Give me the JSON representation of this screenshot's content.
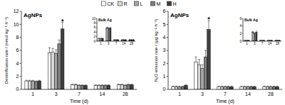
{
  "chart_data": [
    {
      "type": "bar",
      "title": "AgNPs",
      "x_label": "Time (d)",
      "y_label": "Denitrification rate / (nmol·kg⁻¹·h⁻¹)",
      "categories": [
        "1",
        "3",
        "7",
        "14",
        "28"
      ],
      "series": [
        {
          "name": "CK",
          "color": "#ffffff",
          "values": [
            1.3,
            5.6,
            0.7,
            0.6,
            0.7
          ],
          "errors": [
            0.1,
            0.8,
            0.1,
            0.1,
            0.1
          ]
        },
        {
          "name": "R",
          "color": "#d9d9d9",
          "values": [
            1.3,
            5.7,
            0.7,
            0.6,
            0.7
          ],
          "errors": [
            0.1,
            0.6,
            0.1,
            0.1,
            0.1
          ]
        },
        {
          "name": "L",
          "color": "#a6a6a6",
          "values": [
            1.3,
            5.5,
            0.6,
            0.6,
            0.6
          ],
          "errors": [
            0.1,
            0.6,
            0.1,
            0.1,
            0.1
          ]
        },
        {
          "name": "M",
          "color": "#7f7f7f",
          "values": [
            1.2,
            7.0,
            0.6,
            0.6,
            0.7
          ],
          "errors": [
            0.1,
            0.6,
            0.1,
            0.1,
            0.1
          ]
        },
        {
          "name": "H",
          "color": "#3f3f3f",
          "values": [
            1.3,
            9.3,
            0.6,
            0.6,
            0.7
          ],
          "errors": [
            0.1,
            1.0,
            0.1,
            0.1,
            0.1
          ]
        }
      ],
      "ylim": [
        0,
        12
      ],
      "yticks": [
        0,
        2,
        4,
        6,
        8,
        10,
        12
      ],
      "legend": "top",
      "annotations": [
        {
          "text": "*",
          "series_index": 4,
          "category_index": 1
        }
      ]
    },
    {
      "type": "bar",
      "title": "Bulk Ag",
      "categories": [
        "1",
        "3",
        "7",
        "14",
        "28"
      ],
      "series": [
        {
          "color": "#ffffff",
          "values": [
            1.2,
            5.5,
            0.6,
            0.6,
            0.6
          ],
          "errors": [
            0.1,
            0.5,
            0.1,
            0.1,
            0.1
          ]
        },
        {
          "color": "#d9d9d9",
          "values": [
            1.2,
            5.8,
            0.6,
            0.6,
            0.6
          ],
          "errors": [
            0.1,
            0.5,
            0.1,
            0.1,
            0.1
          ]
        },
        {
          "color": "#a6a6a6",
          "values": [
            1.2,
            5.6,
            0.6,
            0.6,
            0.6
          ],
          "errors": [
            0.1,
            0.5,
            0.1,
            0.1,
            0.1
          ]
        },
        {
          "color": "#7f7f7f",
          "values": [
            1.2,
            5.4,
            0.6,
            0.6,
            0.6
          ],
          "errors": [
            0.1,
            0.5,
            0.1,
            0.1,
            0.1
          ]
        },
        {
          "color": "#3f3f3f",
          "values": [
            1.2,
            5.7,
            0.6,
            0.6,
            0.6
          ],
          "errors": [
            0.1,
            0.5,
            0.1,
            0.1,
            0.1
          ]
        }
      ],
      "ylim": [
        0,
        10
      ],
      "yticks": [
        0,
        2,
        4,
        6,
        8,
        10
      ]
    },
    {
      "type": "bar",
      "title": "AgNPs",
      "x_label": "Time (d)",
      "y_label": "N₂O emission rate / (μg·kg⁻¹·h⁻¹)",
      "categories": [
        "1",
        "3",
        "7",
        "14",
        "28"
      ],
      "series": [
        {
          "color": "#ffffff",
          "values": [
            0.2,
            2.1,
            0.2,
            0.2,
            0.2
          ],
          "errors": [
            0.05,
            0.4,
            0.05,
            0.05,
            0.05
          ]
        },
        {
          "color": "#d9d9d9",
          "values": [
            0.2,
            1.9,
            0.2,
            0.2,
            0.2
          ],
          "errors": [
            0.05,
            0.4,
            0.05,
            0.05,
            0.05
          ]
        },
        {
          "color": "#a6a6a6",
          "values": [
            0.2,
            1.6,
            0.2,
            0.2,
            0.2
          ],
          "errors": [
            0.05,
            0.3,
            0.05,
            0.05,
            0.05
          ]
        },
        {
          "color": "#7f7f7f",
          "values": [
            0.2,
            2.5,
            0.2,
            0.2,
            0.2
          ],
          "errors": [
            0.05,
            0.5,
            0.05,
            0.05,
            0.05
          ]
        },
        {
          "color": "#3f3f3f",
          "values": [
            0.3,
            4.6,
            0.2,
            0.2,
            0.2
          ],
          "errors": [
            0.05,
            0.7,
            0.05,
            0.05,
            0.05
          ]
        }
      ],
      "ylim": [
        0,
        6
      ],
      "yticks": [
        0,
        1,
        2,
        3,
        4,
        5,
        6
      ],
      "annotations": [
        {
          "text": "*",
          "series_index": 4,
          "category_index": 1
        }
      ]
    },
    {
      "type": "bar",
      "title": "Bulk Ag",
      "categories": [
        "1",
        "3",
        "7",
        "14",
        "28"
      ],
      "series": [
        {
          "color": "#ffffff",
          "values": [
            0.2,
            2.3,
            0.2,
            0.2,
            0.2
          ],
          "errors": [
            0.05,
            0.3,
            0.05,
            0.05,
            0.05
          ]
        },
        {
          "color": "#d9d9d9",
          "values": [
            0.2,
            2.2,
            0.2,
            0.2,
            0.2
          ],
          "errors": [
            0.05,
            0.3,
            0.05,
            0.05,
            0.05
          ]
        },
        {
          "color": "#a6a6a6",
          "values": [
            0.2,
            2.0,
            0.2,
            0.2,
            0.2
          ],
          "errors": [
            0.05,
            0.3,
            0.05,
            0.05,
            0.05
          ]
        },
        {
          "color": "#7f7f7f",
          "values": [
            0.2,
            2.1,
            0.2,
            0.2,
            0.2
          ],
          "errors": [
            0.05,
            0.3,
            0.05,
            0.05,
            0.05
          ]
        },
        {
          "color": "#3f3f3f",
          "values": [
            0.2,
            2.4,
            0.2,
            0.2,
            0.2
          ],
          "errors": [
            0.05,
            0.3,
            0.05,
            0.05,
            0.05
          ]
        }
      ],
      "ylim": [
        0,
        6
      ],
      "yticks": [
        0,
        2,
        4,
        6
      ]
    }
  ]
}
